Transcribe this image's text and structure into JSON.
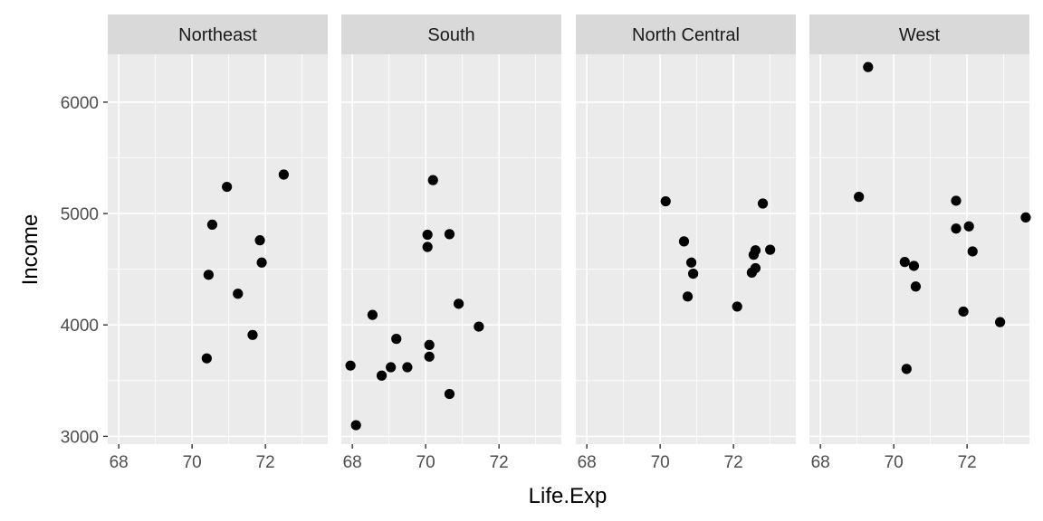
{
  "chart_data": {
    "type": "scatter",
    "title": "",
    "xlabel": "Life.Exp",
    "ylabel": "Income",
    "xlim": [
      67.7,
      73.7
    ],
    "ylim": [
      2930,
      6430
    ],
    "x_ticks": [
      68,
      70,
      72
    ],
    "x_tick_labels": [
      "68",
      "70",
      "72"
    ],
    "y_ticks": [
      3000,
      4000,
      5000,
      6000
    ],
    "y_tick_labels": [
      "3000",
      "4000",
      "5000",
      "6000"
    ],
    "grid": true,
    "legend": "none",
    "point_color": "#000000",
    "panel_background": "#EBEBEB",
    "strip_background": "#D9D9D9",
    "facets": [
      {
        "name": "Northeast",
        "points": [
          {
            "x": 70.4,
            "y": 3700
          },
          {
            "x": 70.45,
            "y": 4450
          },
          {
            "x": 70.55,
            "y": 4900
          },
          {
            "x": 70.95,
            "y": 5240
          },
          {
            "x": 71.25,
            "y": 4280
          },
          {
            "x": 71.65,
            "y": 3910
          },
          {
            "x": 71.85,
            "y": 4760
          },
          {
            "x": 71.9,
            "y": 4560
          },
          {
            "x": 72.5,
            "y": 5350
          }
        ]
      },
      {
        "name": "South",
        "points": [
          {
            "x": 67.95,
            "y": 3635
          },
          {
            "x": 68.1,
            "y": 3100
          },
          {
            "x": 68.55,
            "y": 4090
          },
          {
            "x": 68.8,
            "y": 3545
          },
          {
            "x": 69.05,
            "y": 3620
          },
          {
            "x": 69.2,
            "y": 3875
          },
          {
            "x": 69.5,
            "y": 3620
          },
          {
            "x": 70.05,
            "y": 4810
          },
          {
            "x": 70.05,
            "y": 4700
          },
          {
            "x": 70.1,
            "y": 3820
          },
          {
            "x": 70.1,
            "y": 3715
          },
          {
            "x": 70.2,
            "y": 5300
          },
          {
            "x": 70.65,
            "y": 4815
          },
          {
            "x": 70.65,
            "y": 3380
          },
          {
            "x": 70.9,
            "y": 4190
          },
          {
            "x": 71.45,
            "y": 3985
          }
        ]
      },
      {
        "name": "North Central",
        "points": [
          {
            "x": 70.15,
            "y": 5110
          },
          {
            "x": 70.65,
            "y": 4750
          },
          {
            "x": 70.75,
            "y": 4255
          },
          {
            "x": 70.85,
            "y": 4560
          },
          {
            "x": 70.9,
            "y": 4460
          },
          {
            "x": 72.1,
            "y": 4165
          },
          {
            "x": 72.5,
            "y": 4470
          },
          {
            "x": 72.55,
            "y": 4630
          },
          {
            "x": 72.6,
            "y": 4510
          },
          {
            "x": 72.6,
            "y": 4670
          },
          {
            "x": 72.8,
            "y": 5090
          },
          {
            "x": 73.0,
            "y": 4675
          }
        ]
      },
      {
        "name": "West",
        "points": [
          {
            "x": 69.05,
            "y": 5150
          },
          {
            "x": 69.3,
            "y": 6315
          },
          {
            "x": 70.3,
            "y": 4565
          },
          {
            "x": 70.35,
            "y": 3605
          },
          {
            "x": 70.55,
            "y": 4530
          },
          {
            "x": 70.6,
            "y": 4345
          },
          {
            "x": 71.7,
            "y": 5115
          },
          {
            "x": 71.7,
            "y": 4865
          },
          {
            "x": 71.9,
            "y": 4120
          },
          {
            "x": 72.05,
            "y": 4885
          },
          {
            "x": 72.15,
            "y": 4660
          },
          {
            "x": 72.9,
            "y": 4025
          },
          {
            "x": 73.6,
            "y": 4965
          }
        ]
      }
    ]
  }
}
